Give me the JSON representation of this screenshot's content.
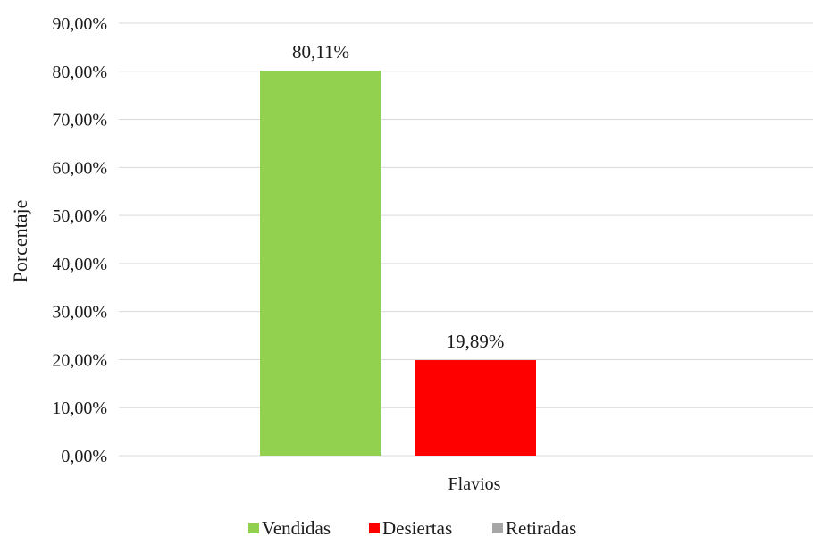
{
  "chart_data": {
    "type": "bar",
    "categories": [
      "Flavios"
    ],
    "series": [
      {
        "name": "Vendidas",
        "values": [
          80.11
        ],
        "label": "80,11%",
        "color": "#92d050"
      },
      {
        "name": "Desiertas",
        "values": [
          19.89
        ],
        "label": "19,89%",
        "color": "#ff0000"
      },
      {
        "name": "Retiradas",
        "values": [
          0
        ],
        "label": "",
        "color": "#a6a6a6"
      }
    ],
    "ylabel": "Porcentaje",
    "xlabel": "",
    "ylim": [
      0,
      90
    ],
    "yticks": [
      0,
      10,
      20,
      30,
      40,
      50,
      60,
      70,
      80,
      90
    ],
    "ytick_labels": [
      "0,00%",
      "10,00%",
      "20,00%",
      "30,00%",
      "40,00%",
      "50,00%",
      "60,00%",
      "70,00%",
      "80,00%",
      "90,00%"
    ],
    "grid": true,
    "legend_position": "bottom"
  }
}
